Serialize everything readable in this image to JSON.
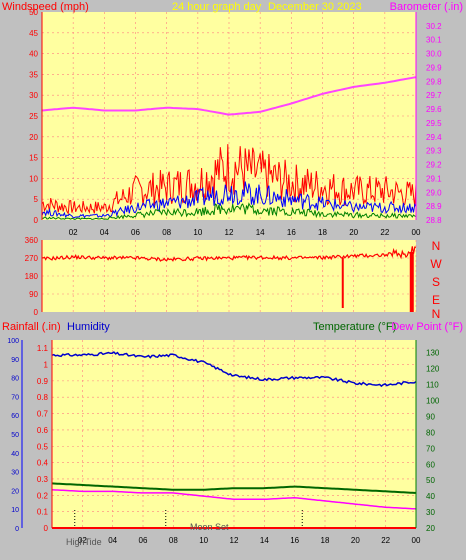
{
  "header": {
    "wind_label": "Windspeed (mph)",
    "title": "24 hour graph day",
    "date": "December 30 2023",
    "baro_label": "Barometer (.in)"
  },
  "middle": {
    "compass": [
      "N",
      "W",
      "S",
      "E",
      "N"
    ]
  },
  "bottom_header": {
    "rain_label": "Rainfall (.in)",
    "humidity_label": "Humidity",
    "temp_label": "Temperature (°F)",
    "dew_label": "Dew Point (°F)"
  },
  "bottom_markers": {
    "high_tide": "HighTide",
    "moon_set": "Moon Set"
  },
  "colors": {
    "plot_bg": "#ffffa0",
    "page_bg": "#c0c0c0",
    "grid": "#ff8080",
    "wind_gust": "#ff0000",
    "wind_avg": "#0000ff",
    "wind_low": "#008000",
    "barometer": "#ff44ff",
    "direction": "#ff0000",
    "humidity": "#0000cc",
    "temperature": "#006600",
    "dewpoint": "#ff00ff",
    "rain": "#ff0000",
    "title": "#ffff00"
  },
  "chart_data": [
    {
      "type": "line",
      "x_ticks": [
        "02",
        "04",
        "06",
        "08",
        "10",
        "12",
        "14",
        "16",
        "18",
        "20",
        "22",
        "00"
      ],
      "y_left": {
        "label": "Windspeed (mph)",
        "range": [
          0,
          50
        ],
        "ticks": [
          0,
          5,
          10,
          15,
          20,
          25,
          30,
          35,
          40,
          45,
          50
        ]
      },
      "y_right": {
        "label": "Barometer (.in)",
        "range": [
          28.8,
          30.3
        ],
        "ticks": [
          28.8,
          28.9,
          29.0,
          29.1,
          29.2,
          29.3,
          29.4,
          29.5,
          29.6,
          29.7,
          29.8,
          29.9,
          30.0,
          30.1,
          30.2
        ]
      },
      "x_hours": [
        0,
        2,
        4,
        6,
        8,
        10,
        12,
        14,
        16,
        18,
        20,
        22,
        24
      ],
      "series": [
        {
          "name": "Windspeed (mph)",
          "axis": "left",
          "values": [
            4,
            3,
            3,
            7,
            8,
            9,
            13,
            11,
            9,
            8,
            7,
            7,
            6
          ]
        },
        {
          "name": "",
          "axis": "left",
          "values": [
            2,
            1,
            1,
            3,
            4,
            5,
            7,
            6,
            5,
            4,
            3,
            3,
            3
          ]
        },
        {
          "name": "",
          "axis": "left",
          "values": [
            0.5,
            0.3,
            0.3,
            1.2,
            1.8,
            2,
            3,
            2.5,
            2,
            1.5,
            1.2,
            1,
            1
          ]
        },
        {
          "name": "Barometer (.in)",
          "axis": "right",
          "values": [
            29.59,
            29.61,
            29.59,
            29.59,
            29.61,
            29.6,
            29.56,
            29.58,
            29.64,
            29.71,
            29.76,
            29.79,
            29.83
          ]
        }
      ]
    },
    {
      "type": "line",
      "x_ticks": [
        "02",
        "04",
        "06",
        "08",
        "10",
        "12",
        "14",
        "16",
        "18",
        "20",
        "22",
        "00"
      ],
      "y_left": {
        "range": [
          0,
          360
        ],
        "ticks": [
          0,
          90,
          180,
          270,
          360
        ]
      },
      "x_hours": [
        0,
        2,
        4,
        6,
        8,
        10,
        12,
        14,
        16,
        18,
        20,
        22,
        24
      ],
      "series": [
        {
          "name": "Wind Direction",
          "values": [
            265,
            275,
            270,
            270,
            262,
            268,
            270,
            273,
            270,
            272,
            280,
            285,
            300
          ]
        }
      ]
    },
    {
      "type": "line",
      "x_ticks": [
        "02",
        "04",
        "06",
        "08",
        "10",
        "12",
        "14",
        "16",
        "18",
        "20",
        "22",
        "00"
      ],
      "y_outer_left": {
        "label": "Humidity",
        "range": [
          0,
          100
        ],
        "ticks": [
          0,
          10,
          20,
          30,
          40,
          50,
          60,
          70,
          80,
          90,
          100
        ]
      },
      "y_left": {
        "label": "Rainfall (.in)",
        "range": [
          0,
          1.15
        ],
        "ticks": [
          0,
          0.1,
          0.2,
          0.3,
          0.4,
          0.5,
          0.6,
          0.7,
          0.8,
          0.9,
          1,
          1.1
        ]
      },
      "y_right": {
        "label": "Temperature (°F)",
        "range": [
          20,
          138
        ],
        "ticks": [
          20,
          30,
          40,
          50,
          60,
          70,
          80,
          90,
          100,
          110,
          120,
          130
        ]
      },
      "x_hours": [
        0,
        2,
        4,
        6,
        8,
        10,
        12,
        14,
        16,
        18,
        20,
        22,
        24
      ],
      "series": [
        {
          "name": "Humidity",
          "axis": "outer_left",
          "values": [
            92,
            92,
            93,
            91,
            92,
            88,
            81,
            79,
            80,
            80,
            77,
            76,
            78
          ]
        },
        {
          "name": "Temperature (°F)",
          "axis": "right",
          "values": [
            48,
            47,
            46,
            45,
            44,
            44,
            45,
            45,
            46,
            45,
            44,
            43,
            42
          ]
        },
        {
          "name": "Dew Point (°F)",
          "axis": "right",
          "values": [
            44,
            43,
            43,
            42,
            42,
            40,
            38,
            38,
            39,
            37,
            35,
            33,
            32
          ]
        },
        {
          "name": "Rainfall (.in)",
          "axis": "left",
          "values": [
            0,
            0,
            0,
            0,
            0,
            0,
            0,
            0,
            0,
            0,
            0,
            0,
            0
          ]
        }
      ]
    }
  ]
}
